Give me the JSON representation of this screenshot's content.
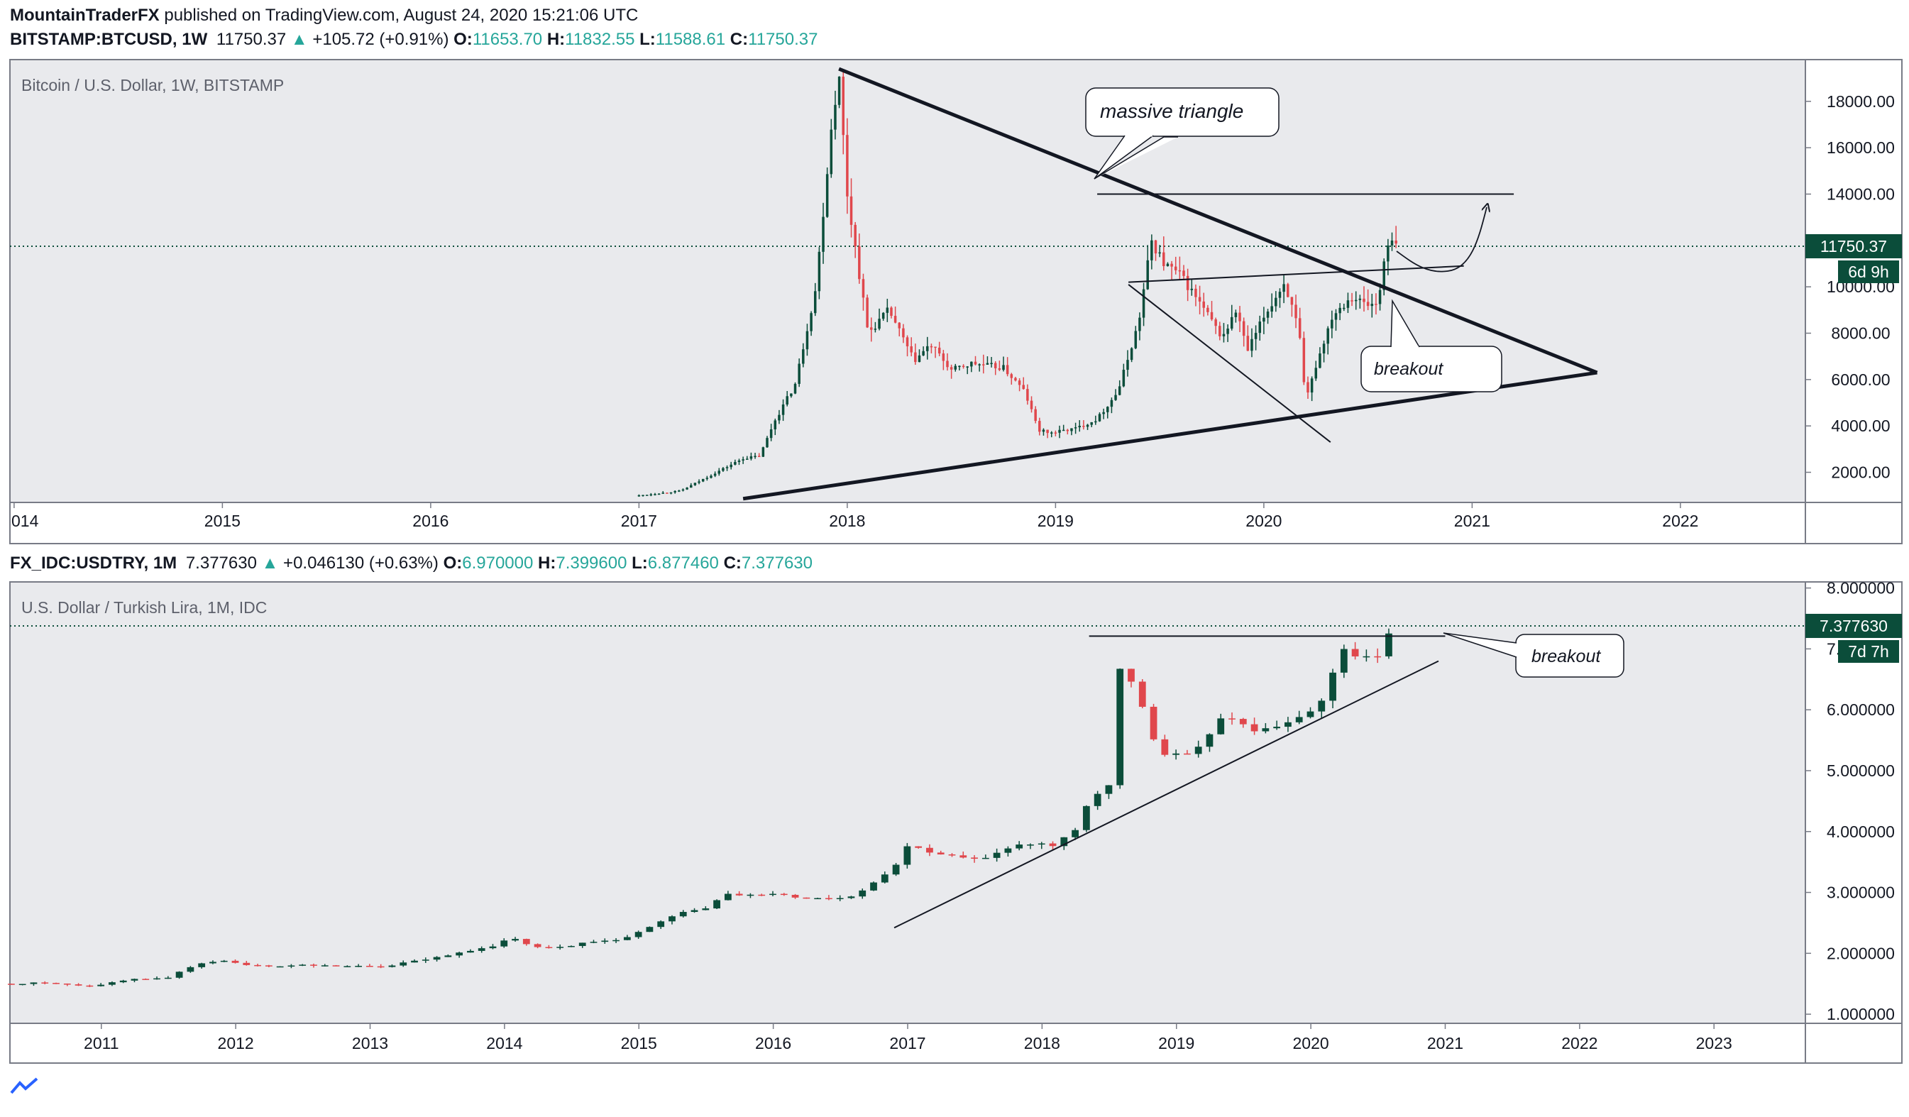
{
  "publish_line": {
    "author": "MountainTraderFX",
    "text": "published on TradingView.com, August 24, 2020 15:21:06 UTC"
  },
  "panes": [
    {
      "symbol": "BITSTAMP:BTCUSD",
      "interval": "1W",
      "last": "11750.37",
      "change": "+105.72 (+0.91%)",
      "o_label": "O:",
      "o": "11653.70",
      "h_label": "H:",
      "h": "11832.55",
      "l_label": "L:",
      "l": "11588.61",
      "c_label": "C:",
      "c": "11750.37",
      "title": "Bitcoin / U.S. Dollar, 1W, BITSTAMP",
      "price_tag": "11750.37",
      "countdown": "6d 9h",
      "annotations": [
        "massive triangle",
        "breakout"
      ]
    },
    {
      "symbol": "FX_IDC:USDTRY",
      "interval": "1M",
      "last": "7.377630",
      "change": "+0.046130 (+0.63%)",
      "o_label": "O:",
      "o": "6.970000",
      "h_label": "H:",
      "h": "7.399600",
      "l_label": "L:",
      "l": "6.877460",
      "c_label": "C:",
      "c": "7.377630",
      "title": "U.S. Dollar / Turkish Lira, 1M, IDC",
      "price_tag": "7.377630",
      "countdown": "7d 7h",
      "annotations": [
        "breakout"
      ]
    }
  ],
  "chart_data": [
    {
      "type": "candlestick",
      "title": "Bitcoin / U.S. Dollar, 1W, BITSTAMP",
      "x_ticks": [
        "014",
        "2015",
        "2016",
        "2017",
        "2018",
        "2019",
        "2020",
        "2021",
        "2022"
      ],
      "y_ticks": [
        "18000.00",
        "16000.00",
        "14000.00",
        "12000.00",
        "10000.00",
        "8000.00",
        "6000.00",
        "4000.00",
        "2000.00"
      ],
      "ylim": [
        700,
        19800
      ],
      "xlim": [
        2013.98,
        2022.6
      ],
      "last_price": 11750.37,
      "colors": {
        "up": "#0b4d3a",
        "down": "#e0474c"
      },
      "path": [
        [
          2017.0,
          1000
        ],
        [
          2017.2,
          1200
        ],
        [
          2017.35,
          1900
        ],
        [
          2017.5,
          2600
        ],
        [
          2017.58,
          2700
        ],
        [
          2017.65,
          4200
        ],
        [
          2017.75,
          5800
        ],
        [
          2017.85,
          10000
        ],
        [
          2017.93,
          17500
        ],
        [
          2017.96,
          19100
        ],
        [
          2018.0,
          14000
        ],
        [
          2018.05,
          11000
        ],
        [
          2018.1,
          8000
        ],
        [
          2018.2,
          9000
        ],
        [
          2018.32,
          6800
        ],
        [
          2018.4,
          7500
        ],
        [
          2018.5,
          6400
        ],
        [
          2018.6,
          6700
        ],
        [
          2018.75,
          6500
        ],
        [
          2018.85,
          5500
        ],
        [
          2018.92,
          3800
        ],
        [
          2018.98,
          3700
        ],
        [
          2019.1,
          3900
        ],
        [
          2019.2,
          4300
        ],
        [
          2019.3,
          5500
        ],
        [
          2019.4,
          8500
        ],
        [
          2019.46,
          12000
        ],
        [
          2019.52,
          11000
        ],
        [
          2019.6,
          10500
        ],
        [
          2019.7,
          9200
        ],
        [
          2019.8,
          7800
        ],
        [
          2019.87,
          9000
        ],
        [
          2019.92,
          7200
        ],
        [
          2020.0,
          8700
        ],
        [
          2020.1,
          10200
        ],
        [
          2020.17,
          8000
        ],
        [
          2020.2,
          5000
        ],
        [
          2020.25,
          6600
        ],
        [
          2020.33,
          8800
        ],
        [
          2020.42,
          9600
        ],
        [
          2020.5,
          9200
        ],
        [
          2020.55,
          9300
        ],
        [
          2020.58,
          11500
        ],
        [
          2020.62,
          11900
        ],
        [
          2020.64,
          11750
        ]
      ],
      "annotation_lines": [
        {
          "name": "upper-triangle-line",
          "from": [
            2017.96,
            19400
          ],
          "to": [
            2021.6,
            6300
          ]
        },
        {
          "name": "lower-triangle-line",
          "from": [
            2017.5,
            860
          ],
          "to": [
            2021.6,
            6300
          ]
        },
        {
          "name": "resistance-line",
          "from": [
            2019.2,
            14000
          ],
          "to": [
            2021.2,
            14000
          ]
        },
        {
          "name": "range-top-line",
          "from": [
            2019.35,
            10200
          ],
          "to": [
            2020.96,
            10900
          ]
        },
        {
          "name": "falling-channel-line",
          "from": [
            2019.35,
            10100
          ],
          "to": [
            2020.32,
            3300
          ]
        },
        {
          "name": "breakout-arrow-from",
          "from": [
            2020.5,
            10200
          ],
          "to": [
            2020.5,
            9300
          ]
        }
      ]
    },
    {
      "type": "candlestick",
      "title": "U.S. Dollar / Turkish Lira, 1M, IDC",
      "x_ticks": [
        "2011",
        "2012",
        "2013",
        "2014",
        "2015",
        "2016",
        "2017",
        "2018",
        "2019",
        "2020",
        "2021",
        "2022",
        "2023"
      ],
      "y_ticks": [
        "8.000000",
        "7.000000",
        "6.000000",
        "5.000000",
        "4.000000",
        "3.000000",
        "2.000000",
        "1.000000"
      ],
      "ylim": [
        0.85,
        8.1
      ],
      "xlim": [
        2010.32,
        2023.68
      ],
      "last_price": 7.37763,
      "colors": {
        "up": "#0b4d3a",
        "down": "#e0474c"
      },
      "path": [
        [
          2010.33,
          1.5
        ],
        [
          2010.6,
          1.52
        ],
        [
          2010.9,
          1.45
        ],
        [
          2011.2,
          1.57
        ],
        [
          2011.5,
          1.6
        ],
        [
          2011.7,
          1.82
        ],
        [
          2011.9,
          1.87
        ],
        [
          2012.2,
          1.78
        ],
        [
          2012.5,
          1.81
        ],
        [
          2012.8,
          1.79
        ],
        [
          2013.1,
          1.78
        ],
        [
          2013.4,
          1.9
        ],
        [
          2013.7,
          2.02
        ],
        [
          2013.9,
          2.1
        ],
        [
          2014.05,
          2.28
        ],
        [
          2014.2,
          2.12
        ],
        [
          2014.4,
          2.1
        ],
        [
          2014.6,
          2.17
        ],
        [
          2014.9,
          2.25
        ],
        [
          2015.05,
          2.4
        ],
        [
          2015.3,
          2.65
        ],
        [
          2015.5,
          2.75
        ],
        [
          2015.65,
          3.0
        ],
        [
          2015.8,
          2.95
        ],
        [
          2016.0,
          2.97
        ],
        [
          2016.2,
          2.92
        ],
        [
          2016.4,
          2.9
        ],
        [
          2016.6,
          2.95
        ],
        [
          2016.8,
          3.25
        ],
        [
          2016.95,
          3.55
        ],
        [
          2017.0,
          3.78
        ],
        [
          2017.2,
          3.65
        ],
        [
          2017.45,
          3.55
        ],
        [
          2017.6,
          3.55
        ],
        [
          2017.8,
          3.8
        ],
        [
          2017.95,
          3.8
        ],
        [
          2018.1,
          3.78
        ],
        [
          2018.25,
          4.05
        ],
        [
          2018.35,
          4.5
        ],
        [
          2018.5,
          4.75
        ],
        [
          2018.58,
          6.7
        ],
        [
          2018.67,
          6.45
        ],
        [
          2018.75,
          6.0
        ],
        [
          2018.85,
          5.35
        ],
        [
          2018.95,
          5.25
        ],
        [
          2019.1,
          5.3
        ],
        [
          2019.25,
          5.6
        ],
        [
          2019.35,
          5.95
        ],
        [
          2019.45,
          5.8
        ],
        [
          2019.6,
          5.65
        ],
        [
          2019.75,
          5.75
        ],
        [
          2019.9,
          5.85
        ],
        [
          2020.05,
          6.05
        ],
        [
          2020.15,
          6.5
        ],
        [
          2020.25,
          7.0
        ],
        [
          2020.35,
          6.85
        ],
        [
          2020.45,
          6.85
        ],
        [
          2020.55,
          6.98
        ],
        [
          2020.6,
          7.38
        ]
      ],
      "annotation_lines": [
        {
          "name": "breakout-line",
          "from": [
            2018.35,
            7.21
          ],
          "to": [
            2021.0,
            7.21
          ]
        },
        {
          "name": "rising-trend-line",
          "from": [
            2016.9,
            2.42
          ],
          "to": [
            2020.95,
            6.8
          ]
        }
      ]
    }
  ]
}
